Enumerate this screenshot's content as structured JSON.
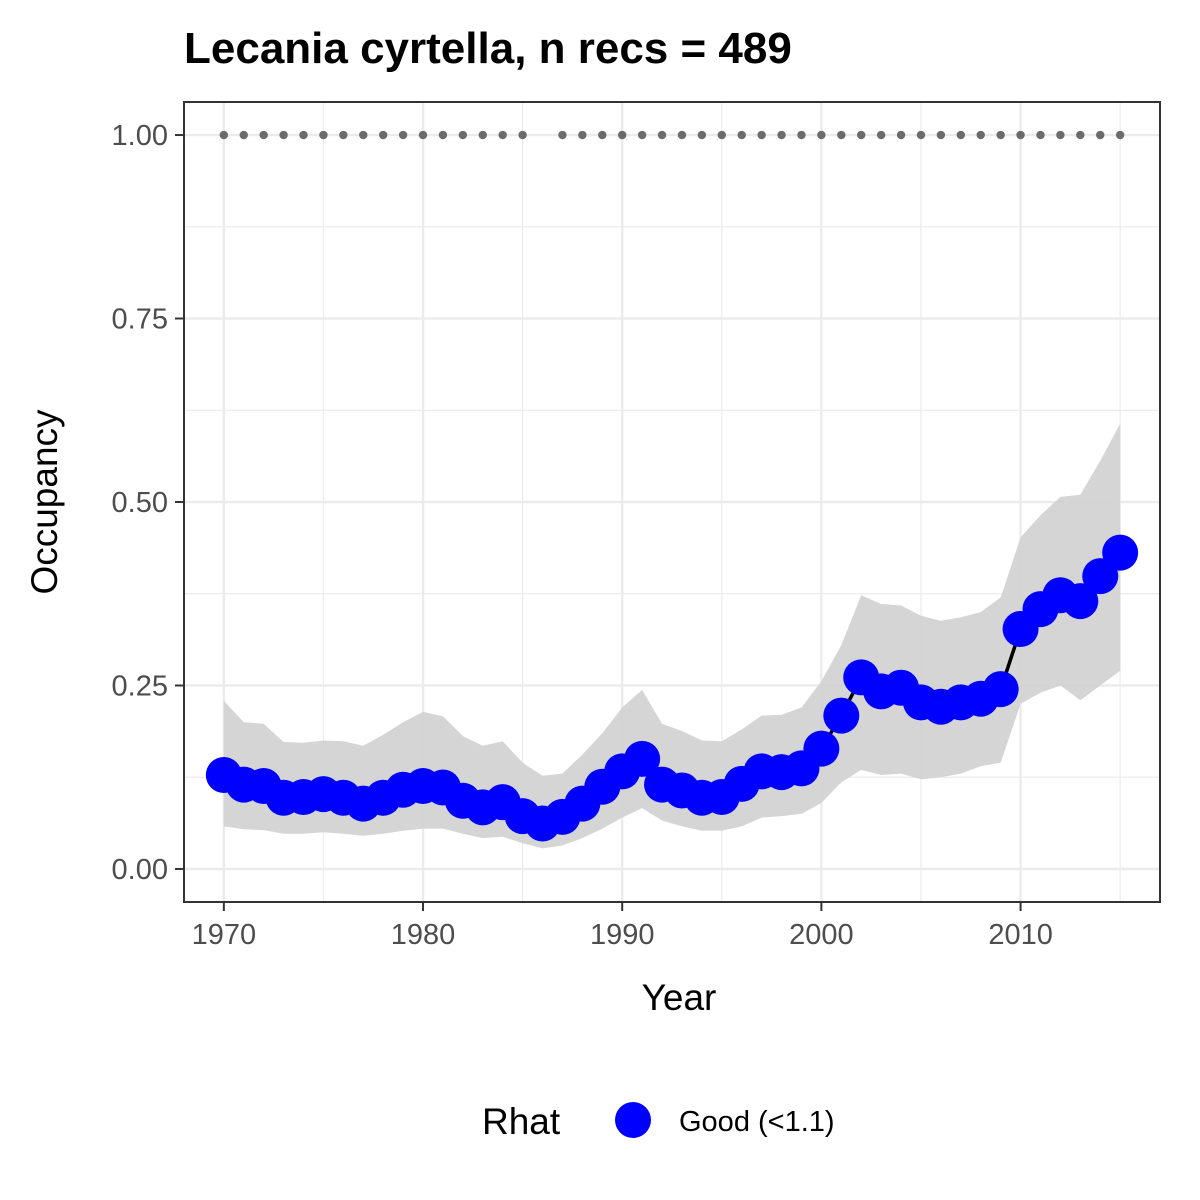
{
  "chart_data": {
    "type": "line",
    "title": "Lecania cyrtella, n recs = 489",
    "xlabel": "Year",
    "ylabel": "Occupancy",
    "xlim": [
      1968,
      2017
    ],
    "ylim": [
      -0.045,
      1.045
    ],
    "x_ticks": [
      1970,
      1980,
      1990,
      2000,
      2010
    ],
    "x_tick_labels": [
      "1970",
      "1980",
      "1990",
      "2000",
      "2010"
    ],
    "y_ticks": [
      0,
      0.25,
      0.5,
      0.75,
      1.0
    ],
    "y_tick_labels": [
      "0.00",
      "0.25",
      "0.50",
      "0.75",
      "1.00"
    ],
    "grid": true,
    "legend": {
      "title": "Rhat",
      "position": "bottom",
      "entries": [
        {
          "label": "Good (<1.1)",
          "color": "#0000ff"
        }
      ]
    },
    "colors": {
      "points": "#0000ff",
      "line": "#000000",
      "ribbon": "#d3d3d3",
      "record_dots": "#6b6b6b",
      "grid": "#ebebeb",
      "panel_border": "#333333"
    },
    "series": [
      {
        "x": [
          1970,
          1971,
          1972,
          1973,
          1974,
          1975,
          1976,
          1977,
          1978,
          1979,
          1980,
          1981,
          1982,
          1983,
          1984,
          1985,
          1986,
          1987,
          1988,
          1989,
          1990,
          1991,
          1992,
          1993,
          1994,
          1995,
          1996,
          1997,
          1998,
          1999,
          2000,
          2001,
          2002,
          2003,
          2004,
          2005,
          2006,
          2007,
          2008,
          2009,
          2010,
          2011,
          2012,
          2013,
          2014,
          2015
        ],
        "y": [
          0.128,
          0.115,
          0.113,
          0.097,
          0.098,
          0.102,
          0.097,
          0.089,
          0.097,
          0.108,
          0.113,
          0.111,
          0.093,
          0.084,
          0.091,
          0.072,
          0.062,
          0.071,
          0.089,
          0.112,
          0.133,
          0.15,
          0.115,
          0.107,
          0.097,
          0.098,
          0.116,
          0.133,
          0.132,
          0.137,
          0.164,
          0.209,
          0.261,
          0.242,
          0.247,
          0.227,
          0.221,
          0.227,
          0.232,
          0.245,
          0.327,
          0.354,
          0.373,
          0.365,
          0.399,
          0.431
        ],
        "lower": [
          0.058,
          0.054,
          0.053,
          0.048,
          0.048,
          0.05,
          0.048,
          0.045,
          0.048,
          0.052,
          0.055,
          0.055,
          0.048,
          0.042,
          0.044,
          0.035,
          0.028,
          0.032,
          0.042,
          0.055,
          0.07,
          0.083,
          0.066,
          0.058,
          0.052,
          0.052,
          0.058,
          0.07,
          0.072,
          0.075,
          0.09,
          0.118,
          0.135,
          0.128,
          0.13,
          0.122,
          0.125,
          0.13,
          0.14,
          0.145,
          0.225,
          0.24,
          0.25,
          0.23,
          0.25,
          0.27
        ],
        "upper": [
          0.229,
          0.2,
          0.198,
          0.173,
          0.172,
          0.175,
          0.174,
          0.168,
          0.183,
          0.2,
          0.214,
          0.208,
          0.181,
          0.168,
          0.174,
          0.145,
          0.127,
          0.13,
          0.156,
          0.185,
          0.22,
          0.244,
          0.198,
          0.188,
          0.175,
          0.174,
          0.19,
          0.209,
          0.21,
          0.22,
          0.256,
          0.305,
          0.373,
          0.361,
          0.359,
          0.345,
          0.338,
          0.343,
          0.35,
          0.37,
          0.452,
          0.482,
          0.507,
          0.51,
          0.556,
          0.607
        ]
      }
    ],
    "record_years": [
      1970,
      1971,
      1972,
      1973,
      1974,
      1975,
      1976,
      1977,
      1978,
      1979,
      1980,
      1981,
      1982,
      1983,
      1984,
      1985,
      1987,
      1988,
      1989,
      1990,
      1991,
      1992,
      1993,
      1994,
      1995,
      1996,
      1997,
      1998,
      1999,
      2000,
      2001,
      2002,
      2003,
      2004,
      2005,
      2006,
      2007,
      2008,
      2009,
      2010,
      2011,
      2012,
      2013,
      2014,
      2015
    ],
    "record_level": 1.0
  }
}
